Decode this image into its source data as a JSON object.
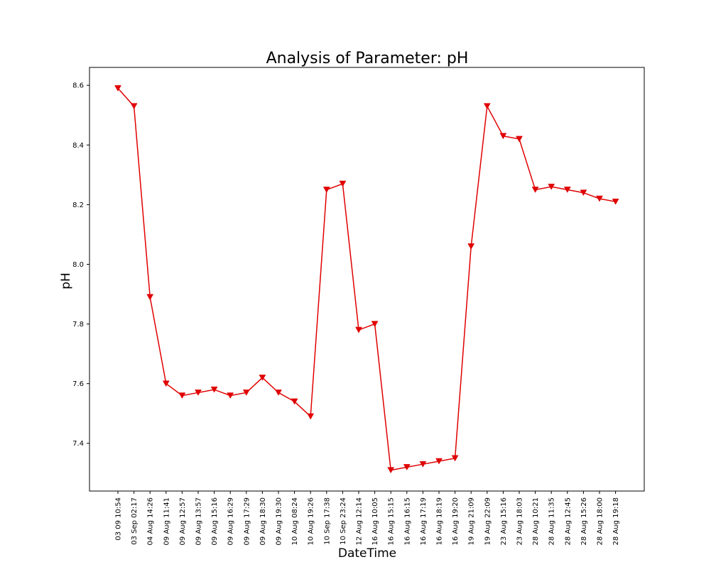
{
  "chart_data": {
    "type": "line",
    "title": "Analysis of Parameter: pH",
    "xlabel": "DateTime",
    "ylabel": "pH",
    "ylim": [
      7.24,
      8.66
    ],
    "yticks": [
      7.4,
      7.6,
      7.8,
      8.0,
      8.2,
      8.4,
      8.6
    ],
    "ytick_labels": [
      "7.4",
      "7.6",
      "7.8",
      "8.0",
      "8.2",
      "8.4",
      "8.6"
    ],
    "grid": false,
    "categories": [
      "03 09 10:54",
      "03 Sep 02:17",
      "04 Aug 14:26",
      "09 Aug 11:41",
      "09 Aug 12:57",
      "09 Aug 13:57",
      "09 Aug 15:16",
      "09 Aug 16:29",
      "09 Aug 17:29",
      "09 Aug 18:30",
      "09 Aug 19:30",
      "10 Aug 08:24",
      "10 Aug 19:26",
      "10 Sep 17:38",
      "10 Sep 23:24",
      "12 Aug 12:14",
      "16 Aug 10:05",
      "16 Aug 15:15",
      "16 Aug 16:15",
      "16 Aug 17:19",
      "16 Aug 18:19",
      "16 Aug 19:20",
      "19 Aug 21:09",
      "19 Aug 22:09",
      "23 Aug 15:16",
      "23 Aug 18:03",
      "28 Aug 10:21",
      "28 Aug 11:35",
      "28 Aug 12:45",
      "28 Aug 15:26",
      "28 Aug 18:00",
      "28 Aug 19:18"
    ],
    "series": [
      {
        "color": "#e00000",
        "marker": "triangle-down",
        "values": [
          8.59,
          8.53,
          7.89,
          7.6,
          7.56,
          7.57,
          7.58,
          7.56,
          7.57,
          7.62,
          7.57,
          7.54,
          7.49,
          8.25,
          8.27,
          7.78,
          7.8,
          7.31,
          7.32,
          7.33,
          7.34,
          7.35,
          8.06,
          8.53,
          8.43,
          8.42,
          8.25,
          8.26,
          8.25,
          8.24,
          8.22,
          8.21
        ]
      }
    ]
  }
}
